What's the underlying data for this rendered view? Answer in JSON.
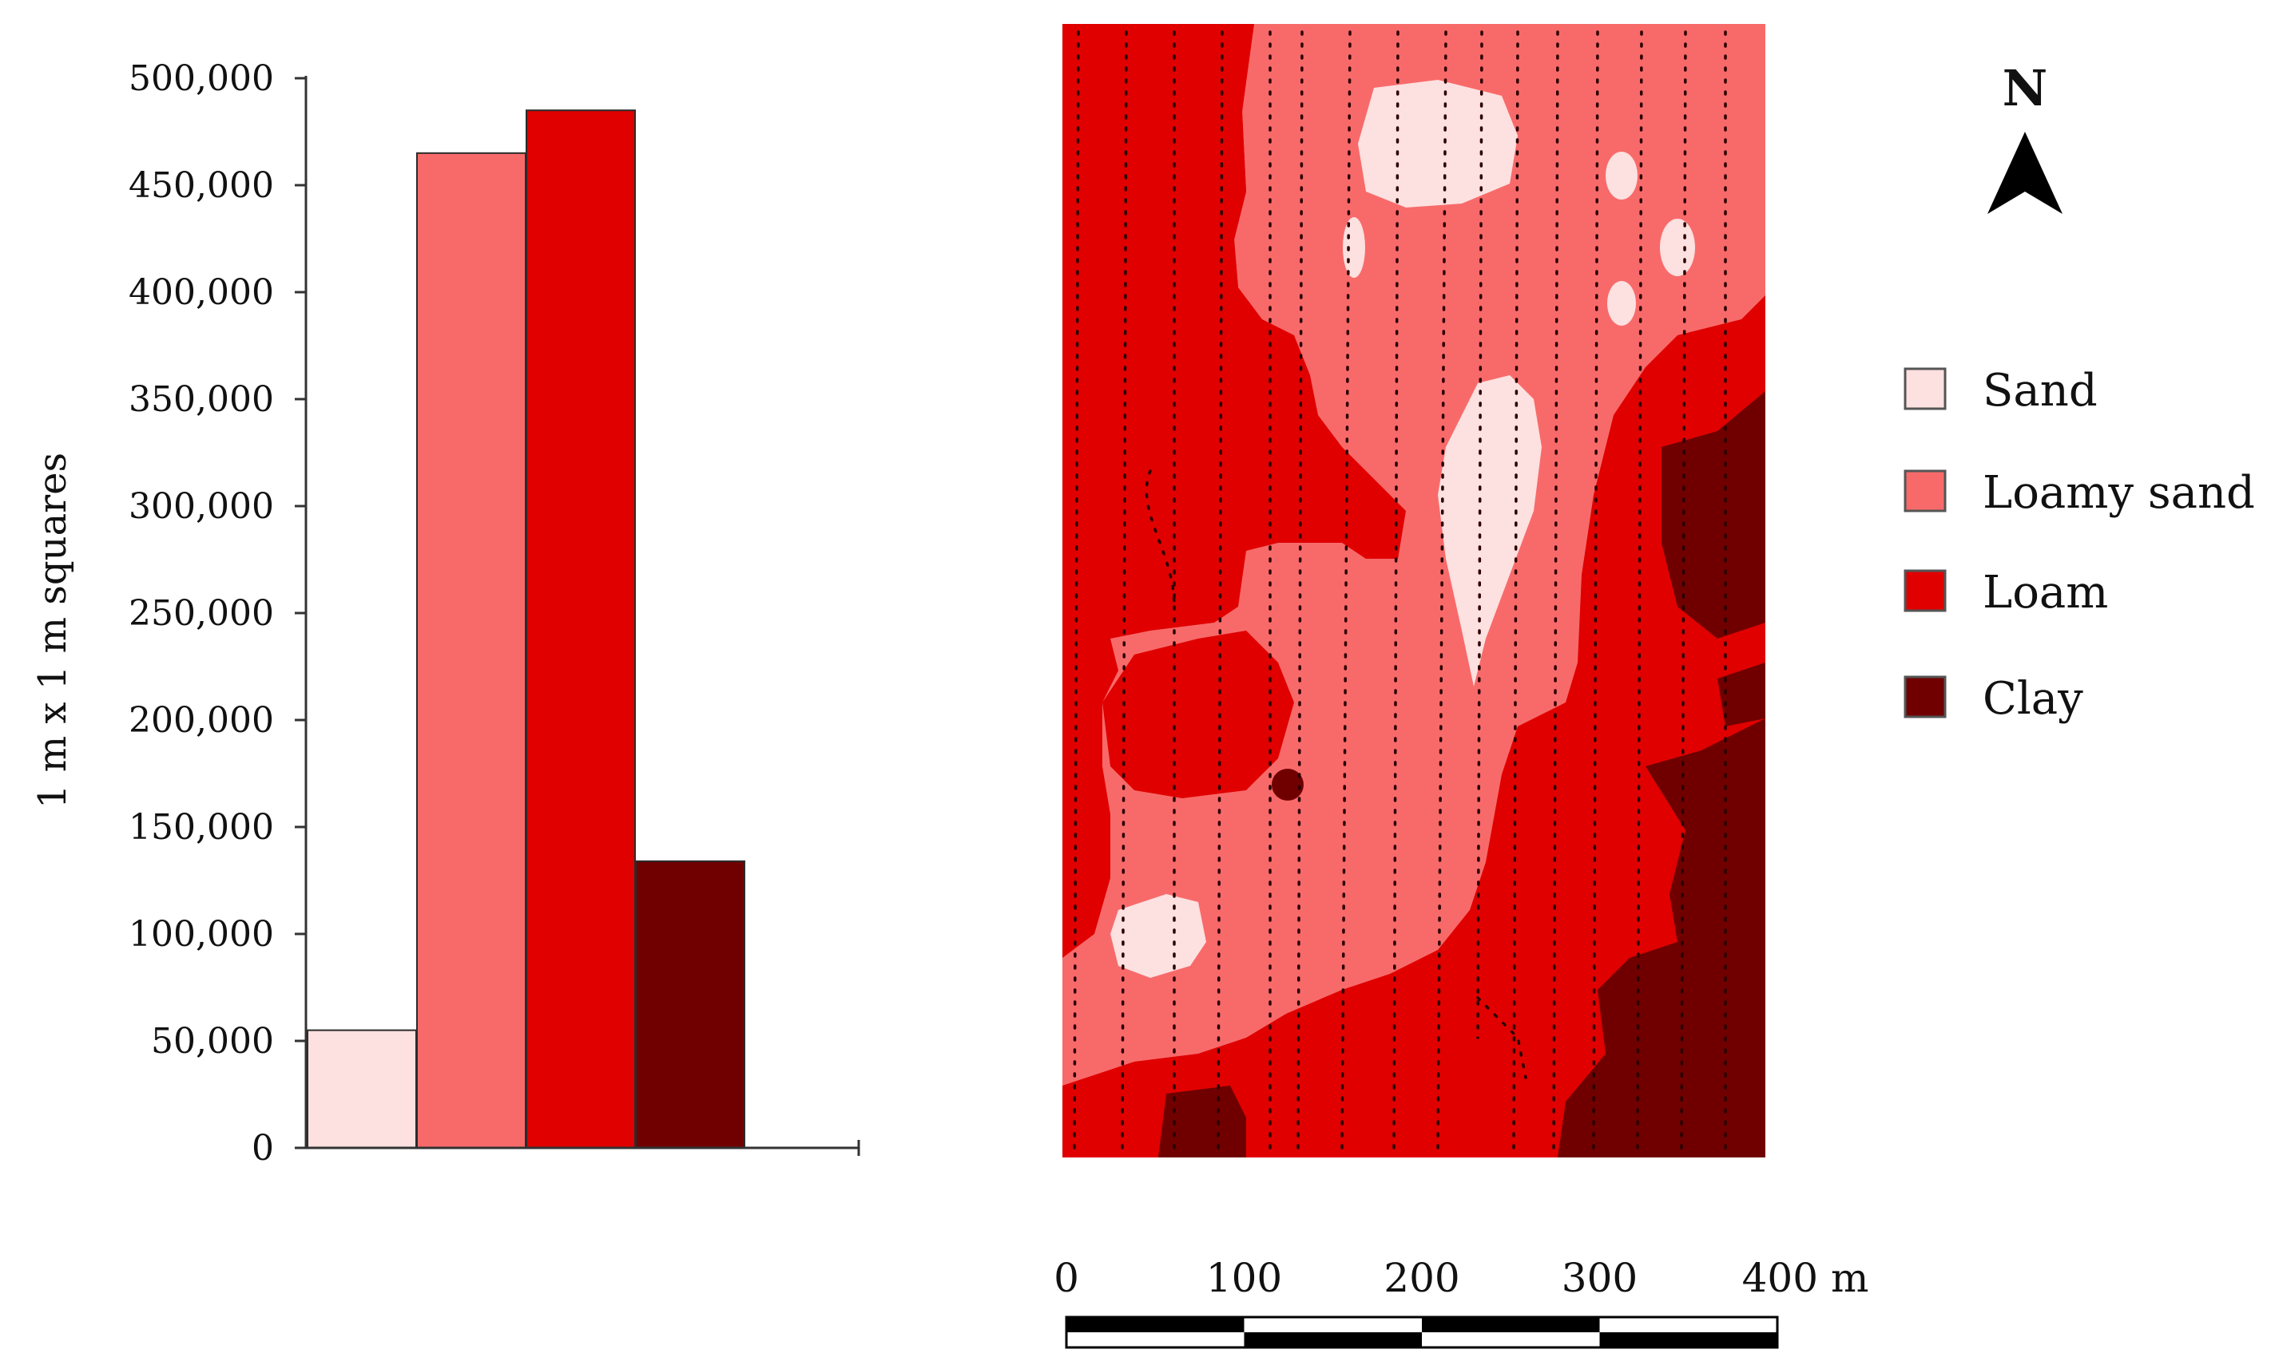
{
  "chart_data": {
    "type": "bar",
    "categories": [
      "Sand",
      "Loamy sand",
      "Loam",
      "Clay"
    ],
    "values": [
      55000,
      465000,
      485000,
      134000
    ],
    "ylabel": "1 m x 1 m squares",
    "xlabel": "",
    "ylim": [
      0,
      500000
    ],
    "yticks": [
      0,
      50000,
      100000,
      150000,
      200000,
      250000,
      300000,
      350000,
      400000,
      450000,
      500000
    ],
    "ytick_labels": [
      "0",
      "50,000",
      "100,000",
      "150,000",
      "200,000",
      "250,000",
      "300,000",
      "350,000",
      "400,000",
      "450,000",
      "500,000"
    ],
    "colors": [
      "#fde0e0",
      "#f86a6a",
      "#e00000",
      "#700000"
    ],
    "grid": false
  },
  "map": {
    "north_label": "N",
    "legend": [
      {
        "label": "Sand",
        "color": "#fde0e0"
      },
      {
        "label": "Loamy sand",
        "color": "#f86a6a"
      },
      {
        "label": "Loam",
        "color": "#e00000"
      },
      {
        "label": "Clay",
        "color": "#700000"
      }
    ],
    "scale_bar": {
      "labels": [
        "0",
        "100",
        "200",
        "300",
        "400 m"
      ]
    }
  }
}
